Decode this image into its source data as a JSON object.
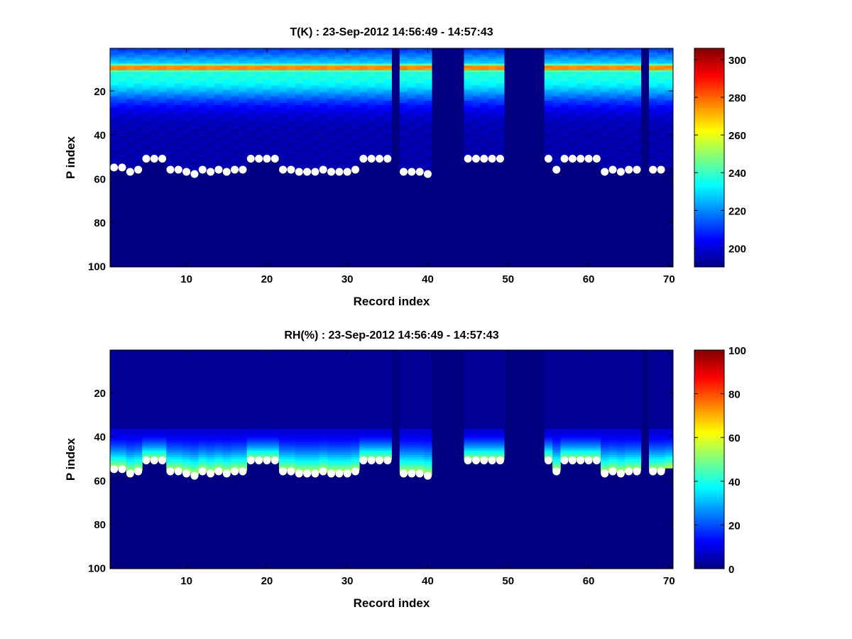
{
  "chart_data": [
    {
      "type": "heatmap",
      "title": "T(K) : 23-Sep-2012 14:56:49 - 14:57:43",
      "xlabel": "Record index",
      "ylabel": "P index",
      "xlim": [
        0.5,
        70.5
      ],
      "ylim": [
        0.5,
        100.5
      ],
      "y_reversed": true,
      "xticks": [
        10,
        20,
        30,
        40,
        50,
        60,
        70
      ],
      "yticks": [
        20,
        40,
        60,
        80,
        100
      ],
      "colorbar": {
        "min": 190,
        "max": 306,
        "ticks": [
          200,
          220,
          240,
          260,
          280,
          300
        ],
        "colormap": "jet"
      },
      "empty_records": [
        36,
        41,
        42,
        43,
        44,
        50,
        51,
        52,
        53,
        54,
        67
      ],
      "surface_p_index": [
        55,
        55,
        57,
        56,
        51,
        51,
        51,
        56,
        56,
        57,
        58,
        56,
        57,
        56,
        57,
        56,
        56,
        51,
        51,
        51,
        51,
        56,
        56,
        57,
        57,
        57,
        56,
        57,
        57,
        57,
        56,
        51,
        51,
        51,
        51,
        null,
        57,
        57,
        57,
        58,
        null,
        null,
        null,
        null,
        51,
        51,
        51,
        51,
        51,
        null,
        null,
        null,
        null,
        null,
        51,
        56,
        51,
        51,
        51,
        51,
        51,
        57,
        56,
        57,
        56,
        56,
        null,
        56,
        56,
        null
      ],
      "profile_note": "Temperature peak ~280 K near P index 5-13, decreasing to ~200 K below P index 45"
    },
    {
      "type": "heatmap",
      "title": "RH(%) : 23-Sep-2012 14:56:49 - 14:57:43",
      "xlabel": "Record index",
      "ylabel": "P index",
      "xlim": [
        0.5,
        70.5
      ],
      "ylim": [
        0.5,
        100.5
      ],
      "y_reversed": true,
      "xticks": [
        10,
        20,
        30,
        40,
        50,
        60,
        70
      ],
      "yticks": [
        20,
        40,
        60,
        80,
        100
      ],
      "colorbar": {
        "min": 0,
        "max": 100,
        "ticks": [
          0,
          20,
          40,
          60,
          80,
          100
        ],
        "colormap": "jet"
      },
      "empty_records": [
        36,
        41,
        42,
        43,
        44,
        50,
        51,
        52,
        53,
        54,
        67
      ],
      "surface_p_index": [
        55,
        55,
        57,
        56,
        51,
        51,
        51,
        56,
        56,
        57,
        58,
        56,
        57,
        56,
        57,
        56,
        56,
        51,
        51,
        51,
        51,
        56,
        56,
        57,
        57,
        57,
        56,
        57,
        57,
        57,
        56,
        51,
        51,
        51,
        51,
        null,
        57,
        57,
        57,
        58,
        null,
        null,
        null,
        null,
        51,
        51,
        51,
        51,
        51,
        null,
        null,
        null,
        null,
        null,
        51,
        56,
        51,
        51,
        51,
        51,
        51,
        57,
        56,
        57,
        56,
        56,
        null,
        56,
        56,
        null
      ],
      "profile_note": "Humidity rises from ~10% at P index 37 to ~50-60% just above the surface point"
    }
  ]
}
